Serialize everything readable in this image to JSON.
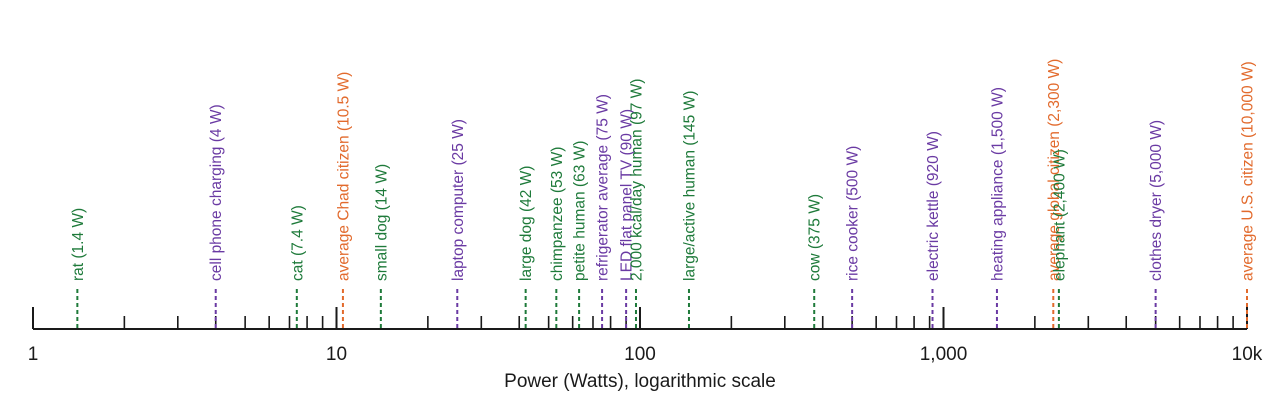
{
  "chart_data": {
    "type": "scatter",
    "title": "",
    "xlabel": "Power (Watts), logarithmic scale",
    "ylabel": "",
    "x_scale": "log",
    "xlim": [
      1,
      10000
    ],
    "grid": false,
    "major_ticks": [
      {
        "value": 1,
        "label": "1"
      },
      {
        "value": 10,
        "label": "10"
      },
      {
        "value": 100,
        "label": "100"
      },
      {
        "value": 1000,
        "label": "1,000"
      },
      {
        "value": 10000,
        "label": "10k"
      }
    ],
    "colors": {
      "category_a": "#1e7a3a",
      "category_b": "#6a3aa3",
      "category_c": "#e26a2c",
      "axis": "#1a1a1a"
    },
    "points": [
      {
        "x": 1.4,
        "label": "rat (1.4 W)",
        "color": "#1e7a3a"
      },
      {
        "x": 4,
        "label": "cell phone charging (4 W)",
        "color": "#6a3aa3"
      },
      {
        "x": 7.4,
        "label": "cat (7.4 W)",
        "color": "#1e7a3a"
      },
      {
        "x": 10.5,
        "label": "average Chad citizen (10.5 W)",
        "color": "#e26a2c"
      },
      {
        "x": 14,
        "label": "small dog (14 W)",
        "color": "#1e7a3a"
      },
      {
        "x": 25,
        "label": "laptop computer (25 W)",
        "color": "#6a3aa3"
      },
      {
        "x": 42,
        "label": "large dog (42 W)",
        "color": "#1e7a3a"
      },
      {
        "x": 53,
        "label": "chimpanzee (53 W)",
        "color": "#1e7a3a"
      },
      {
        "x": 63,
        "label": "petite human (63 W)",
        "color": "#1e7a3a"
      },
      {
        "x": 75,
        "label": "refrigerator average (75 W)",
        "color": "#6a3aa3"
      },
      {
        "x": 90,
        "label": "LED flat panel TV (90 W)",
        "color": "#6a3aa3"
      },
      {
        "x": 97,
        "label": "2,000 kcal/day human (97 W)",
        "color": "#1e7a3a"
      },
      {
        "x": 145,
        "label": "large/active human (145 W)",
        "color": "#1e7a3a"
      },
      {
        "x": 375,
        "label": "cow (375 W)",
        "color": "#1e7a3a"
      },
      {
        "x": 500,
        "label": "rice cooker (500 W)",
        "color": "#6a3aa3"
      },
      {
        "x": 920,
        "label": "electric kettle (920 W)",
        "color": "#6a3aa3"
      },
      {
        "x": 1500,
        "label": "heating appliance (1,500 W)",
        "color": "#6a3aa3"
      },
      {
        "x": 2300,
        "label": "average global citizen (2,300 W)",
        "color": "#e26a2c"
      },
      {
        "x": 2400,
        "label": "elephant (2,400 W)",
        "color": "#1e7a3a"
      },
      {
        "x": 5000,
        "label": "clothes dryer (5,000 W)",
        "color": "#6a3aa3"
      },
      {
        "x": 10000,
        "label": "average U.S. citizen (10,000 W)",
        "color": "#e26a2c"
      }
    ]
  }
}
